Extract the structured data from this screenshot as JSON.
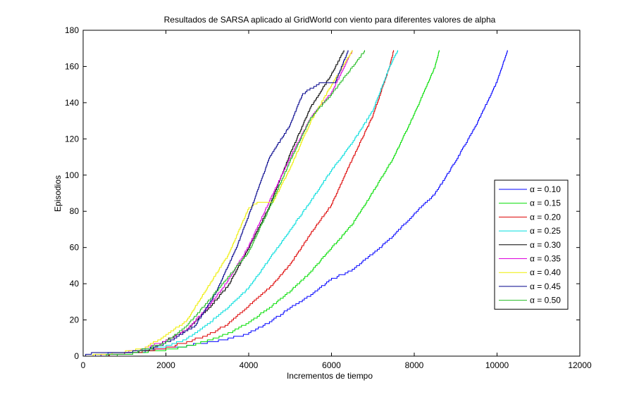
{
  "chart_data": {
    "type": "line",
    "title": "Resultados de SARSA aplicado al GridWorld con viento para diferentes valores de alpha",
    "xlabel": "Incrementos de tiempo",
    "ylabel": "Episodios",
    "xlim": [
      0,
      12000
    ],
    "ylim": [
      0,
      180
    ],
    "xticks": [
      0,
      2000,
      4000,
      6000,
      8000,
      10000,
      12000
    ],
    "yticks": [
      0,
      20,
      40,
      60,
      80,
      100,
      120,
      140,
      160,
      180
    ],
    "xtick_labels": [
      "0",
      "2000",
      "4000",
      "6000",
      "8000",
      "10000",
      "12000"
    ],
    "ytick_labels": [
      "0",
      "20",
      "40",
      "60",
      "80",
      "100",
      "120",
      "140",
      "160",
      "180"
    ],
    "grid": false,
    "legend_position": "right",
    "series": [
      {
        "name": "α = 0.10",
        "color": "#0000ff",
        "points": [
          [
            0,
            0
          ],
          [
            600,
            2
          ],
          [
            1500,
            3
          ],
          [
            2000,
            5
          ],
          [
            2500,
            6
          ],
          [
            3000,
            8
          ],
          [
            3500,
            10
          ],
          [
            4000,
            13
          ],
          [
            4500,
            19
          ],
          [
            5000,
            27
          ],
          [
            5500,
            34
          ],
          [
            6000,
            43
          ],
          [
            6500,
            48
          ],
          [
            7000,
            57
          ],
          [
            7500,
            67
          ],
          [
            8000,
            79
          ],
          [
            8500,
            90
          ],
          [
            9000,
            108
          ],
          [
            9500,
            128
          ],
          [
            10000,
            152
          ],
          [
            10250,
            169
          ]
        ]
      },
      {
        "name": "α = 0.15",
        "color": "#00dd00",
        "points": [
          [
            0,
            0
          ],
          [
            1200,
            2
          ],
          [
            2000,
            4
          ],
          [
            2500,
            6
          ],
          [
            3000,
            9
          ],
          [
            3500,
            13
          ],
          [
            4000,
            19
          ],
          [
            4500,
            27
          ],
          [
            5000,
            36
          ],
          [
            5500,
            47
          ],
          [
            6000,
            60
          ],
          [
            6500,
            73
          ],
          [
            7000,
            91
          ],
          [
            7500,
            110
          ],
          [
            8000,
            134
          ],
          [
            8500,
            160
          ],
          [
            8600,
            169
          ]
        ]
      },
      {
        "name": "α = 0.20",
        "color": "#dd0000",
        "points": [
          [
            0,
            0
          ],
          [
            1000,
            2
          ],
          [
            2000,
            5
          ],
          [
            2500,
            8
          ],
          [
            3000,
            12
          ],
          [
            3500,
            18
          ],
          [
            4000,
            28
          ],
          [
            4500,
            38
          ],
          [
            5000,
            51
          ],
          [
            5500,
            68
          ],
          [
            6000,
            84
          ],
          [
            6500,
            109
          ],
          [
            7000,
            133
          ],
          [
            7400,
            160
          ],
          [
            7500,
            169
          ]
        ]
      },
      {
        "name": "α = 0.25",
        "color": "#00dddd",
        "points": [
          [
            0,
            0
          ],
          [
            1000,
            2
          ],
          [
            1500,
            4
          ],
          [
            2000,
            6
          ],
          [
            2500,
            10
          ],
          [
            3000,
            18
          ],
          [
            3500,
            27
          ],
          [
            4000,
            38
          ],
          [
            4500,
            54
          ],
          [
            5000,
            70
          ],
          [
            5500,
            86
          ],
          [
            6000,
            103
          ],
          [
            6500,
            118
          ],
          [
            7000,
            136
          ],
          [
            7400,
            160
          ],
          [
            7600,
            169
          ]
        ]
      },
      {
        "name": "α = 0.30",
        "color": "#000000",
        "points": [
          [
            0,
            0
          ],
          [
            1000,
            2
          ],
          [
            1600,
            4
          ],
          [
            2000,
            9
          ],
          [
            2500,
            15
          ],
          [
            3000,
            26
          ],
          [
            3500,
            39
          ],
          [
            4000,
            60
          ],
          [
            4500,
            83
          ],
          [
            5000,
            112
          ],
          [
            5500,
            138
          ],
          [
            6000,
            156
          ],
          [
            6300,
            169
          ]
        ]
      },
      {
        "name": "α = 0.35",
        "color": "#dd00dd",
        "points": [
          [
            0,
            0
          ],
          [
            1000,
            2
          ],
          [
            1500,
            5
          ],
          [
            2000,
            9
          ],
          [
            2500,
            15
          ],
          [
            3000,
            27
          ],
          [
            3500,
            42
          ],
          [
            4000,
            61
          ],
          [
            4500,
            86
          ],
          [
            5000,
            110
          ],
          [
            5500,
            132
          ],
          [
            6000,
            146
          ],
          [
            6500,
            169
          ]
        ]
      },
      {
        "name": "α = 0.40",
        "color": "#eeee00",
        "points": [
          [
            0,
            0
          ],
          [
            700,
            2
          ],
          [
            1500,
            5
          ],
          [
            2000,
            12
          ],
          [
            2500,
            20
          ],
          [
            3000,
            38
          ],
          [
            3500,
            56
          ],
          [
            4000,
            82
          ],
          [
            4200,
            85
          ],
          [
            4600,
            86
          ],
          [
            5000,
            104
          ],
          [
            5500,
            130
          ],
          [
            6000,
            150
          ],
          [
            6500,
            169
          ]
        ]
      },
      {
        "name": "α = 0.45",
        "color": "#00008b",
        "points": [
          [
            0,
            0
          ],
          [
            200,
            2
          ],
          [
            1200,
            3
          ],
          [
            1800,
            6
          ],
          [
            2200,
            10
          ],
          [
            2700,
            17
          ],
          [
            3200,
            35
          ],
          [
            3700,
            60
          ],
          [
            4000,
            78
          ],
          [
            4500,
            110
          ],
          [
            5000,
            128
          ],
          [
            5300,
            145
          ],
          [
            5700,
            151
          ],
          [
            6100,
            152
          ],
          [
            6400,
            169
          ]
        ]
      },
      {
        "name": "α = 0.50",
        "color": "#22bb22",
        "points": [
          [
            0,
            0
          ],
          [
            1200,
            2
          ],
          [
            2000,
            8
          ],
          [
            2500,
            17
          ],
          [
            3000,
            30
          ],
          [
            3500,
            44
          ],
          [
            4000,
            58
          ],
          [
            4500,
            82
          ],
          [
            5000,
            108
          ],
          [
            5500,
            132
          ],
          [
            6000,
            145
          ],
          [
            6500,
            160
          ],
          [
            6800,
            169
          ]
        ]
      }
    ]
  }
}
